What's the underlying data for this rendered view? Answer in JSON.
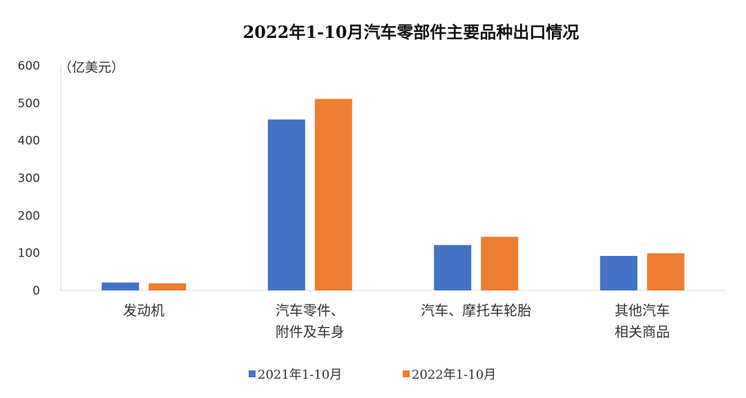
{
  "chart_data": {
    "type": "bar",
    "title": "2022年1-10月汽车零部件主要品种出口情况",
    "unit_label": "（亿美元）",
    "categories": [
      [
        "发动机"
      ],
      [
        "汽车零件、",
        "附件及车身"
      ],
      [
        "汽车、摩托车轮胎"
      ],
      [
        "其他汽车",
        "相关商品"
      ]
    ],
    "series": [
      {
        "name": "2021年1-10月",
        "color": "#4472C4",
        "values": [
          21,
          456,
          121,
          92
        ]
      },
      {
        "name": "2022年1-10月",
        "color": "#ED7D31",
        "values": [
          19,
          511,
          143,
          99
        ]
      }
    ],
    "ylim": [
      0,
      600
    ],
    "yticks": [
      0,
      100,
      200,
      300,
      400,
      500,
      600
    ],
    "grid": false,
    "legend_position": "bottom"
  }
}
